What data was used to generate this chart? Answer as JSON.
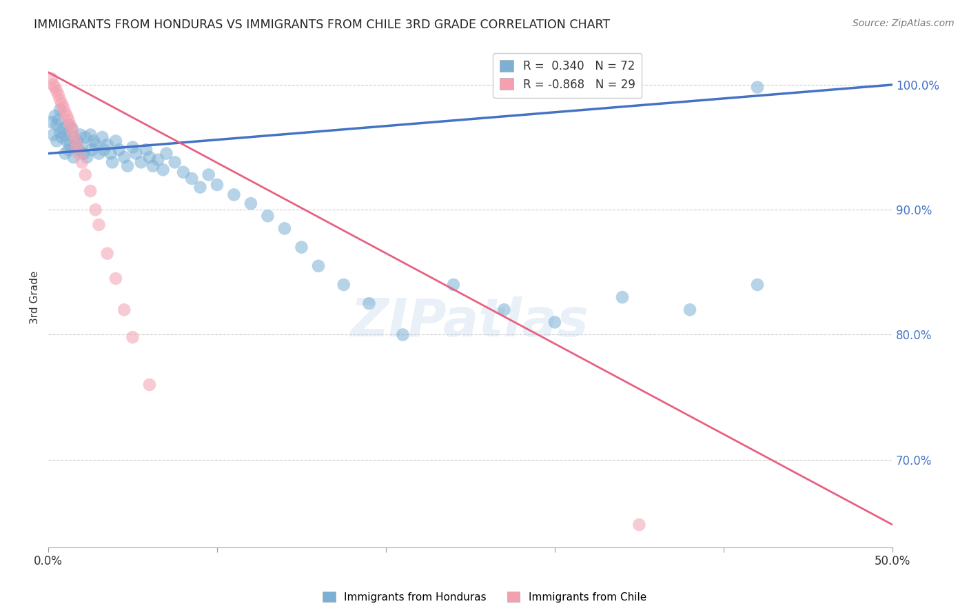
{
  "title": "IMMIGRANTS FROM HONDURAS VS IMMIGRANTS FROM CHILE 3RD GRADE CORRELATION CHART",
  "source": "Source: ZipAtlas.com",
  "ylabel": "3rd Grade",
  "xlim": [
    0.0,
    0.5
  ],
  "ylim": [
    0.63,
    1.03
  ],
  "yticks": [
    0.7,
    0.8,
    0.9,
    1.0
  ],
  "ytick_labels": [
    "70.0%",
    "80.0%",
    "90.0%",
    "100.0%"
  ],
  "xticks": [
    0.0,
    0.1,
    0.2,
    0.3,
    0.4,
    0.5
  ],
  "xtick_labels": [
    "0.0%",
    "",
    "",
    "",
    "",
    "50.0%"
  ],
  "blue_color": "#7bafd4",
  "pink_color": "#f4a0b0",
  "blue_line_color": "#4472c4",
  "pink_line_color": "#e86080",
  "watermark": "ZIPatlas",
  "honduras_scatter_x": [
    0.002,
    0.003,
    0.004,
    0.005,
    0.005,
    0.006,
    0.007,
    0.007,
    0.008,
    0.009,
    0.01,
    0.01,
    0.011,
    0.012,
    0.012,
    0.013,
    0.014,
    0.015,
    0.015,
    0.016,
    0.017,
    0.018,
    0.019,
    0.02,
    0.021,
    0.022,
    0.023,
    0.025,
    0.026,
    0.027,
    0.028,
    0.03,
    0.032,
    0.033,
    0.035,
    0.037,
    0.038,
    0.04,
    0.042,
    0.045,
    0.047,
    0.05,
    0.052,
    0.055,
    0.058,
    0.06,
    0.062,
    0.065,
    0.068,
    0.07,
    0.075,
    0.08,
    0.085,
    0.09,
    0.095,
    0.1,
    0.11,
    0.12,
    0.13,
    0.14,
    0.15,
    0.16,
    0.175,
    0.19,
    0.21,
    0.24,
    0.27,
    0.3,
    0.34,
    0.38,
    0.42,
    0.42
  ],
  "honduras_scatter_y": [
    0.97,
    0.96,
    0.975,
    0.968,
    0.955,
    0.972,
    0.962,
    0.98,
    0.958,
    0.965,
    0.96,
    0.945,
    0.955,
    0.968,
    0.948,
    0.952,
    0.965,
    0.958,
    0.942,
    0.95,
    0.955,
    0.948,
    0.96,
    0.952,
    0.945,
    0.958,
    0.942,
    0.96,
    0.948,
    0.955,
    0.952,
    0.945,
    0.958,
    0.948,
    0.952,
    0.945,
    0.938,
    0.955,
    0.948,
    0.942,
    0.935,
    0.95,
    0.945,
    0.938,
    0.948,
    0.942,
    0.935,
    0.94,
    0.932,
    0.945,
    0.938,
    0.93,
    0.925,
    0.918,
    0.928,
    0.92,
    0.912,
    0.905,
    0.895,
    0.885,
    0.87,
    0.855,
    0.84,
    0.825,
    0.8,
    0.84,
    0.82,
    0.81,
    0.83,
    0.82,
    0.998,
    0.84
  ],
  "chile_scatter_x": [
    0.002,
    0.003,
    0.004,
    0.005,
    0.006,
    0.007,
    0.008,
    0.009,
    0.01,
    0.011,
    0.012,
    0.013,
    0.014,
    0.015,
    0.016,
    0.017,
    0.018,
    0.02,
    0.022,
    0.025,
    0.028,
    0.03,
    0.035,
    0.04,
    0.045,
    0.05,
    0.06,
    0.35
  ],
  "chile_scatter_y": [
    1.005,
    1.0,
    0.998,
    0.995,
    0.992,
    0.988,
    0.985,
    0.982,
    0.978,
    0.975,
    0.972,
    0.968,
    0.965,
    0.96,
    0.955,
    0.95,
    0.945,
    0.938,
    0.928,
    0.915,
    0.9,
    0.888,
    0.865,
    0.845,
    0.82,
    0.798,
    0.76,
    0.648
  ],
  "blue_trendline_x": [
    0.0,
    0.5
  ],
  "blue_trendline_y": [
    0.945,
    1.0
  ],
  "pink_trendline_x": [
    0.0,
    0.5
  ],
  "pink_trendline_y": [
    1.01,
    0.648
  ]
}
